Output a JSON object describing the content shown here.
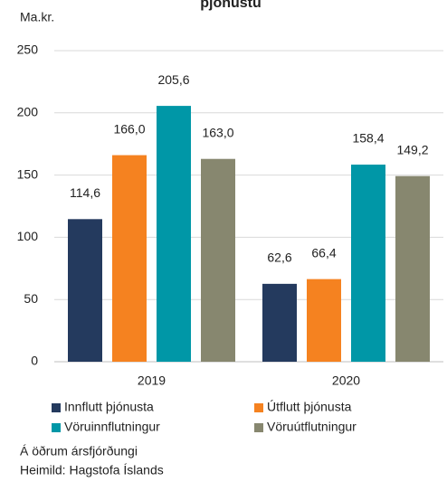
{
  "chart_data": {
    "type": "bar",
    "title": "þjónustu",
    "y_unit": "Ma.kr.",
    "categories": [
      "2019",
      "2020"
    ],
    "series": [
      {
        "name": "Innflutt þjónusta",
        "color": "#243a5e",
        "values": [
          114.6,
          62.6
        ],
        "value_labels": [
          "114,6",
          "62,6"
        ]
      },
      {
        "name": "Útflutt þjónusta",
        "color": "#f58220",
        "values": [
          166.0,
          66.4
        ],
        "value_labels": [
          "166,0",
          "66,4"
        ]
      },
      {
        "name": "Vöruinnflutningur",
        "color": "#0097a7",
        "values": [
          205.6,
          158.4
        ],
        "value_labels": [
          "205,6",
          "158,4"
        ]
      },
      {
        "name": "Vöruútflutningur",
        "color": "#87876f",
        "values": [
          163.0,
          149.2
        ],
        "value_labels": [
          "163,0",
          "149,2"
        ]
      }
    ],
    "ylim": [
      0,
      250
    ],
    "yticks": [
      0,
      50,
      100,
      150,
      200,
      250
    ],
    "grid": true,
    "notes": [
      "Á öðrum ársfjórðungi",
      "Heimild: Hagstofa Íslands"
    ]
  }
}
